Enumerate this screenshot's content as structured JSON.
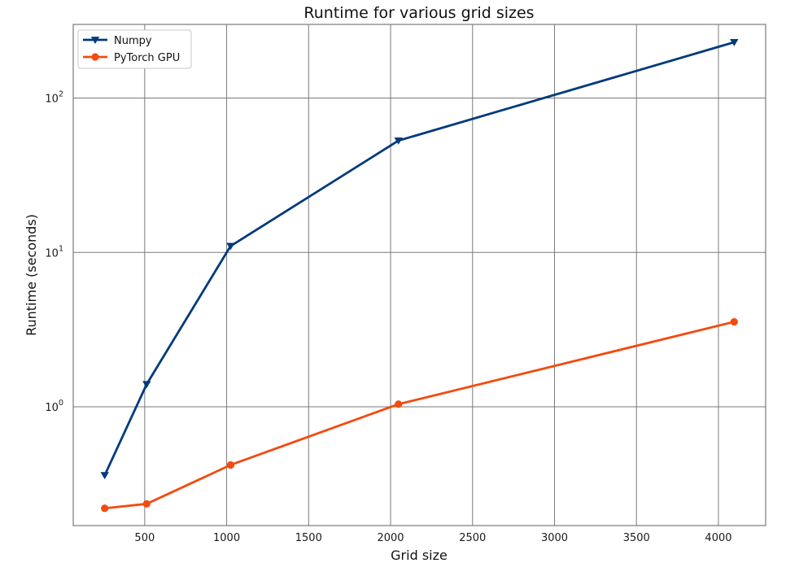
{
  "chart_data": {
    "type": "line",
    "title": "Runtime for various grid sizes",
    "xlabel": "Grid size",
    "ylabel": "Runtime (seconds)",
    "xlim": [
      64,
      4288
    ],
    "ylim": [
      0.17,
      300
    ],
    "yscale": "log",
    "grid": true,
    "legend_position": "top-left",
    "x_ticks": [
      {
        "value": 500,
        "label": "500"
      },
      {
        "value": 1000,
        "label": "1000"
      },
      {
        "value": 1500,
        "label": "1500"
      },
      {
        "value": 2000,
        "label": "2000"
      },
      {
        "value": 2500,
        "label": "2500"
      },
      {
        "value": 3000,
        "label": "3000"
      },
      {
        "value": 3500,
        "label": "3500"
      },
      {
        "value": 4000,
        "label": "4000"
      }
    ],
    "y_ticks": [
      {
        "value": 1,
        "base": "10",
        "exp": "0"
      },
      {
        "value": 10,
        "base": "10",
        "exp": "1"
      },
      {
        "value": 100,
        "base": "10",
        "exp": "2"
      }
    ],
    "x": [
      256,
      512,
      1024,
      2048,
      4096
    ],
    "series": [
      {
        "name": "Numpy",
        "color": "#003a7d",
        "marker": "triangle-down",
        "values": [
          0.36,
          1.4,
          11,
          53,
          230
        ]
      },
      {
        "name": "PyTorch GPU",
        "color": "#f24b0f",
        "marker": "circle",
        "values": [
          0.22,
          0.235,
          0.42,
          1.04,
          3.55
        ]
      }
    ]
  }
}
